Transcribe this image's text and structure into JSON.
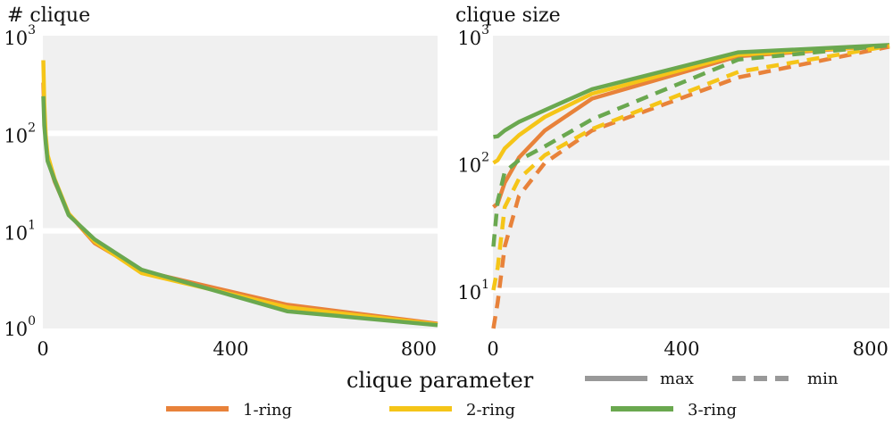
{
  "chart_data": [
    {
      "type": "line",
      "title": "# clique",
      "xlabel": "",
      "ylabel": "",
      "yscale": "log",
      "xlim": [
        0,
        840
      ],
      "ylim": [
        1,
        1000
      ],
      "xticks": [
        0,
        400,
        800
      ],
      "yticks": [
        {
          "base": "10",
          "exp": "0"
        },
        {
          "base": "10",
          "exp": "1"
        },
        {
          "base": "10",
          "exp": "2"
        },
        {
          "base": "10",
          "exp": "3"
        }
      ],
      "grid": "horizontal bands",
      "series": [
        {
          "name": "1-ring",
          "style": "solid",
          "color": "#E8823A",
          "x": [
            1,
            3,
            6,
            10,
            25,
            55,
            110,
            210,
            520,
            840
          ],
          "y": [
            330,
            150,
            85,
            55,
            32,
            15,
            7.5,
            3.9,
            1.75,
            1.12
          ]
        },
        {
          "name": "2-ring",
          "style": "solid",
          "color": "#F5C518",
          "x": [
            1,
            3,
            6,
            10,
            25,
            55,
            110,
            210,
            520,
            840
          ],
          "y": [
            560,
            200,
            95,
            60,
            34,
            15,
            7.8,
            3.7,
            1.65,
            1.1
          ]
        },
        {
          "name": "3-ring",
          "style": "solid",
          "color": "#6AA84F",
          "x": [
            1,
            3,
            6,
            10,
            25,
            55,
            110,
            210,
            520,
            840
          ],
          "y": [
            240,
            120,
            80,
            52,
            33,
            14.5,
            8.2,
            4.0,
            1.5,
            1.08
          ]
        }
      ]
    },
    {
      "type": "line",
      "title": "clique size",
      "xlabel": "",
      "ylabel": "",
      "yscale": "log",
      "xlim": [
        0,
        840
      ],
      "ylim": [
        5,
        1000
      ],
      "xticks": [
        0,
        400,
        800
      ],
      "yticks": [
        {
          "base": "10",
          "exp": "1"
        },
        {
          "base": "10",
          "exp": "2"
        },
        {
          "base": "10",
          "exp": "3"
        }
      ],
      "grid": "horizontal bands",
      "series": [
        {
          "name": "1-ring max",
          "style": "solid",
          "color": "#E8823A",
          "x": [
            1,
            10,
            25,
            55,
            110,
            210,
            520,
            840
          ],
          "y": [
            45,
            48,
            70,
            110,
            180,
            320,
            690,
            840
          ]
        },
        {
          "name": "2-ring max",
          "style": "solid",
          "color": "#F5C518",
          "x": [
            1,
            10,
            25,
            55,
            110,
            210,
            520,
            840
          ],
          "y": [
            100,
            105,
            130,
            165,
            230,
            350,
            710,
            840
          ]
        },
        {
          "name": "3-ring max",
          "style": "solid",
          "color": "#6AA84F",
          "x": [
            1,
            10,
            25,
            55,
            110,
            210,
            520,
            840
          ],
          "y": [
            160,
            162,
            180,
            210,
            260,
            380,
            740,
            845
          ]
        },
        {
          "name": "1-ring min",
          "style": "dashed",
          "color": "#E8823A",
          "x": [
            1,
            10,
            25,
            55,
            110,
            210,
            520,
            840
          ],
          "y": [
            3,
            8,
            22,
            55,
            100,
            180,
            470,
            820
          ]
        },
        {
          "name": "2-ring min",
          "style": "dashed",
          "color": "#F5C518",
          "x": [
            1,
            10,
            25,
            55,
            110,
            210,
            520,
            840
          ],
          "y": [
            10,
            15,
            45,
            75,
            115,
            185,
            520,
            830
          ]
        },
        {
          "name": "3-ring min",
          "style": "dashed",
          "color": "#6AA84F",
          "x": [
            1,
            10,
            25,
            55,
            110,
            210,
            520,
            840
          ],
          "y": [
            22,
            50,
            85,
            105,
            135,
            220,
            650,
            840
          ]
        }
      ]
    }
  ],
  "legend": {
    "title": "clique parameter",
    "placement": "bottom",
    "style_entries": [
      {
        "label": "max",
        "style": "solid",
        "color": "#999999"
      },
      {
        "label": "min",
        "style": "dashed",
        "color": "#999999"
      }
    ],
    "color_entries": [
      {
        "label": "1-ring",
        "color": "#E8823A"
      },
      {
        "label": "2-ring",
        "color": "#F5C518"
      },
      {
        "label": "3-ring",
        "color": "#6AA84F"
      }
    ]
  }
}
